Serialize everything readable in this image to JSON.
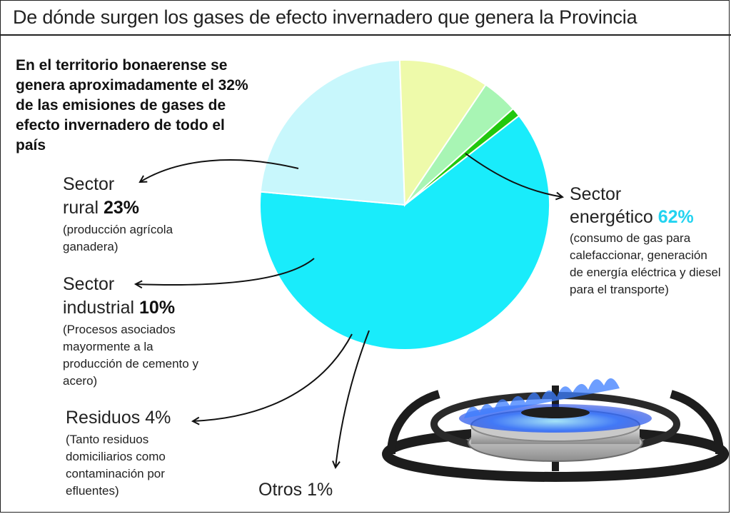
{
  "header": {
    "title": "De dónde surgen los gases de efecto invernadero que genera la Provincia"
  },
  "intro": {
    "text": "En el territorio bonaerense se genera aproximadamente el 32% de las emisiones de gases de efecto invernadero de todo el país"
  },
  "labels": {
    "energetico": {
      "line1": "Sector",
      "line2": "energético",
      "pct": "62%",
      "desc": "(consumo de gas para calefaccionar, generación de energía eléctrica y diesel para el transporte)"
    },
    "rural": {
      "line1": "Sector",
      "line2": "rural",
      "pct": "23%",
      "desc": "(producción agrícola ganadera)"
    },
    "industrial": {
      "line1": "Sector",
      "line2": "industrial",
      "pct": "10%",
      "desc": "(Procesos asociados mayormente a la producción de cemento y acero)"
    },
    "residuos": {
      "name": "Residuos",
      "pct": "4%",
      "desc": "(Tanto residuos domiciliarios como contaminación por efluentes)"
    },
    "otros": {
      "name": "Otros",
      "pct": "1%"
    }
  },
  "chart_data": {
    "type": "pie",
    "categories": [
      "Sector energético",
      "Sector rural",
      "Sector industrial",
      "Residuos",
      "Otros"
    ],
    "values": [
      62,
      23,
      10,
      4,
      1
    ],
    "colors": [
      "#19ecfb",
      "#c8f7fc",
      "#eefaaa",
      "#a8f5b4",
      "#22c80e"
    ],
    "title": "De dónde surgen los gases de efecto invernadero que genera la Provincia"
  },
  "illustration": {
    "icon": "gas-burner-icon",
    "flame_color": "#2a6bff"
  }
}
